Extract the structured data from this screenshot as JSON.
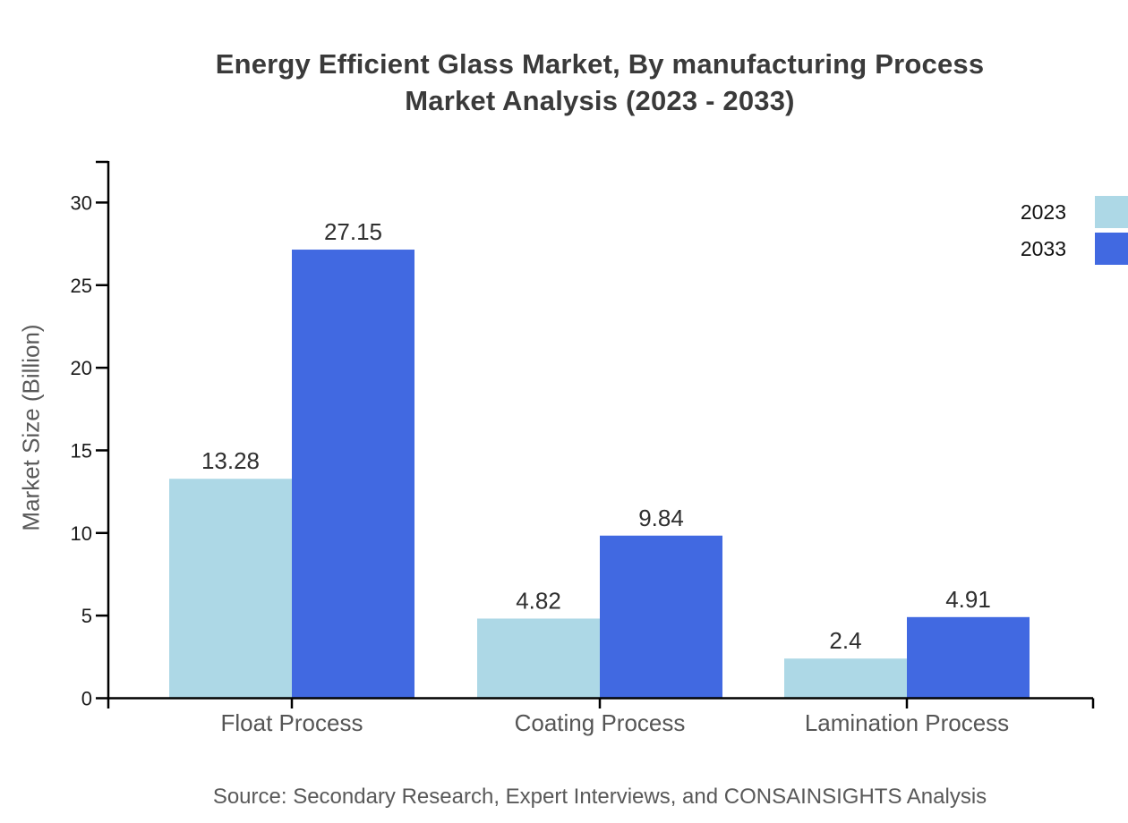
{
  "chart_data": {
    "type": "bar",
    "title": "Energy Efficient Glass Market, By manufacturing Process Market Analysis (2023 - 2033)",
    "title_line1": "Energy Efficient Glass Market, By manufacturing Process",
    "title_line2": "Market Analysis (2023 - 2033)",
    "categories": [
      "Float Process",
      "Coating Process",
      "Lamination Process"
    ],
    "series": [
      {
        "name": "2023",
        "color": "#ADD8E6",
        "values": [
          13.28,
          4.82,
          2.4
        ],
        "labels": [
          "13.28",
          "4.82",
          "2.4"
        ]
      },
      {
        "name": "2033",
        "color": "#4169E1",
        "values": [
          27.15,
          9.84,
          4.91
        ],
        "labels": [
          "27.15",
          "9.84",
          "4.91"
        ]
      }
    ],
    "xlabel": "",
    "ylabel": "Market Size (Billion)",
    "ylim": [
      0,
      32.5
    ],
    "yticks": [
      0,
      5,
      10,
      15,
      20,
      25,
      30
    ],
    "grid": false,
    "legend_position": "top-right",
    "axis_color": "#000000",
    "tick_label_color": "#1a1a1a",
    "category_label_color": "#555555",
    "value_label_color": "#2f2f2f"
  },
  "source_note": "Source: Secondary Research, Expert Interviews, and CONSAINSIGHTS Analysis"
}
